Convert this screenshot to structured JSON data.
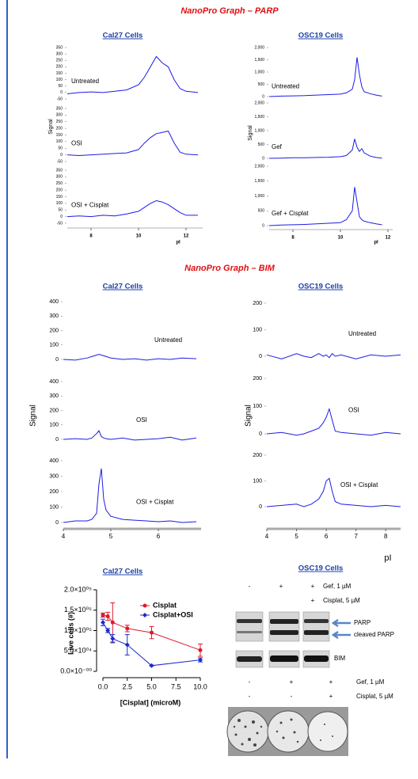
{
  "sections": [
    {
      "title": "NanoPro Graph – PARP"
    },
    {
      "title": "NanoPro Graph – BIM"
    }
  ],
  "chart_data": [
    {
      "type": "traces",
      "title": "Cal27 Cells",
      "y_label": "Signal",
      "x_label": "pI",
      "xlim": [
        7,
        12.7
      ],
      "xticks": [
        8,
        10,
        12
      ],
      "ylim": [
        -50,
        350
      ],
      "yticks": [
        -50,
        0,
        50,
        100,
        150,
        200,
        250,
        300,
        350
      ],
      "x": [
        7,
        7.5,
        8,
        8.5,
        9,
        9.5,
        10,
        10.25,
        10.5,
        10.75,
        11,
        11.25,
        11.5,
        11.75,
        12,
        12.5
      ],
      "series": [
        {
          "name": "Untreated",
          "color": "#1c1ce6",
          "values": [
            -10,
            0,
            5,
            0,
            10,
            20,
            60,
            120,
            200,
            280,
            230,
            200,
            100,
            30,
            10,
            0
          ]
        },
        {
          "name": "OSI",
          "color": "#1c1ce6",
          "values": [
            0,
            -5,
            0,
            5,
            10,
            15,
            40,
            90,
            130,
            160,
            170,
            180,
            90,
            20,
            5,
            0
          ]
        },
        {
          "name": "OSI + Cisplat",
          "color": "#1c1ce6",
          "values": [
            0,
            5,
            0,
            10,
            5,
            20,
            40,
            70,
            100,
            120,
            110,
            90,
            60,
            30,
            10,
            10
          ]
        }
      ]
    },
    {
      "type": "traces",
      "title": "OSC19 Cells",
      "y_label": "Signal",
      "x_label": "pI",
      "xlim": [
        7,
        12.2
      ],
      "xticks": [
        8,
        10,
        12
      ],
      "ylim": [
        0,
        2000
      ],
      "yticks": [
        0,
        500,
        {
          "value": 1000,
          "label": "1,000"
        },
        {
          "value": 1500,
          "label": "1,500"
        },
        {
          "value": 2000,
          "label": "2,000"
        }
      ],
      "x": [
        7,
        7.5,
        8,
        8.5,
        9,
        9.5,
        10,
        10.25,
        10.5,
        10.6,
        10.7,
        10.8,
        10.9,
        11,
        11.25,
        11.5,
        11.75
      ],
      "series": [
        {
          "name": "Untreated",
          "color": "#1c1ce6",
          "values": [
            0,
            20,
            30,
            40,
            60,
            80,
            100,
            150,
            300,
            700,
            1600,
            900,
            400,
            200,
            120,
            60,
            20
          ]
        },
        {
          "name": "Gef",
          "color": "#1c1ce6",
          "values": [
            0,
            10,
            20,
            20,
            30,
            40,
            60,
            100,
            300,
            700,
            400,
            250,
            350,
            200,
            80,
            30,
            10
          ]
        },
        {
          "name": "Gef + Cisplat",
          "color": "#1c1ce6",
          "values": [
            0,
            20,
            30,
            40,
            60,
            80,
            100,
            200,
            500,
            1300,
            800,
            300,
            200,
            150,
            100,
            60,
            30
          ]
        }
      ]
    },
    {
      "type": "traces",
      "title": "Cal27 Cells",
      "y_label": "Signal",
      "xlim": [
        4,
        6.9
      ],
      "xticks": [
        4,
        5,
        6
      ],
      "ylim": [
        0,
        400
      ],
      "yticks": [
        0,
        100,
        200,
        300,
        400
      ],
      "x": [
        4,
        4.25,
        4.5,
        4.6,
        4.7,
        4.75,
        4.8,
        4.85,
        4.9,
        5,
        5.25,
        5.5,
        5.75,
        6,
        6.25,
        6.5,
        6.8
      ],
      "series": [
        {
          "name": "Untreated",
          "color": "#1c1ce6",
          "values": [
            0,
            -5,
            10,
            20,
            30,
            35,
            30,
            25,
            20,
            10,
            0,
            5,
            -5,
            5,
            0,
            10,
            5
          ]
        },
        {
          "name": "OSI",
          "color": "#1c1ce6",
          "values": [
            0,
            5,
            0,
            10,
            40,
            60,
            20,
            10,
            5,
            0,
            10,
            -5,
            0,
            5,
            15,
            -5,
            10
          ]
        },
        {
          "name": "OSI + Cisplat",
          "color": "#1c1ce6",
          "values": [
            0,
            10,
            10,
            20,
            60,
            250,
            350,
            150,
            80,
            40,
            20,
            15,
            10,
            5,
            10,
            0,
            5
          ]
        }
      ]
    },
    {
      "type": "traces",
      "title": "OSC19 Cells",
      "y_label": "Signal",
      "x_label": "pI",
      "xlim": [
        4,
        8.5
      ],
      "xticks": [
        4,
        5,
        6,
        7,
        8
      ],
      "ylim": [
        0,
        200
      ],
      "yticks": [
        0,
        100,
        200
      ],
      "x": [
        4,
        4.5,
        5,
        5.25,
        5.5,
        5.75,
        5.9,
        6,
        6.1,
        6.2,
        6.3,
        6.5,
        7,
        7.5,
        8,
        8.5
      ],
      "series": [
        {
          "name": "Untreated",
          "color": "#1c1ce6",
          "values": [
            5,
            -10,
            10,
            0,
            -5,
            10,
            0,
            5,
            -5,
            10,
            0,
            5,
            -10,
            5,
            0,
            5
          ]
        },
        {
          "name": "OSI",
          "color": "#1c1ce6",
          "values": [
            0,
            5,
            -5,
            0,
            10,
            20,
            40,
            60,
            90,
            50,
            10,
            5,
            0,
            -5,
            5,
            0
          ]
        },
        {
          "name": "OSI + Cisplat",
          "color": "#1c1ce6",
          "values": [
            0,
            5,
            10,
            0,
            10,
            30,
            60,
            100,
            110,
            60,
            20,
            10,
            5,
            0,
            5,
            0
          ]
        }
      ]
    },
    {
      "type": "line",
      "title": "Cal27 Cells",
      "x_label": "[Cisplat] (microM)",
      "y_label": "Live cells (#)",
      "xlim": [
        0,
        10
      ],
      "xticks": [
        {
          "value": 0,
          "label": "0.0"
        },
        2.5,
        {
          "value": 5,
          "label": "5.0"
        },
        7.5,
        {
          "value": 10,
          "label": "10.0"
        }
      ],
      "ylim": [
        0,
        200000
      ],
      "yticks": [
        {
          "value": 0,
          "label": "0.0×10⁻⁰⁰"
        },
        {
          "value": 50000,
          "label": "5.0×10⁰⁴"
        },
        {
          "value": 100000,
          "label": "1.0×10⁰⁵"
        },
        {
          "value": 150000,
          "label": "1.5×10⁰⁵"
        },
        {
          "value": 200000,
          "label": "2.0×10⁰⁵"
        }
      ],
      "legend": "top-right",
      "x": [
        0,
        0.5,
        1,
        2.5,
        5,
        10
      ],
      "series": [
        {
          "name": "Cisplat",
          "color": "#e0192a",
          "values": [
            138000,
            135000,
            120000,
            105000,
            95000,
            52000
          ],
          "errors": [
            5000,
            10000,
            48000,
            8000,
            15000,
            15000
          ]
        },
        {
          "name": "Cisplat+OSI",
          "color": "#1a2ad0",
          "values": [
            120000,
            100000,
            80000,
            65000,
            14000,
            28000
          ],
          "errors": [
            8000,
            5000,
            10000,
            25000,
            1000,
            5000
          ]
        }
      ]
    }
  ],
  "blot": {
    "title": "OSC19 Cells",
    "header_top": [
      {
        "marks": [
          "-",
          "+",
          "+"
        ],
        "label": "Gef, 1 µM"
      },
      {
        "marks": [
          null,
          null,
          "+"
        ],
        "label": "Cisplat, 5 µM"
      }
    ],
    "bands": [
      "PARP",
      "cleaved PARP",
      "BIM"
    ],
    "header_bottom": [
      {
        "marks": [
          "-",
          "+",
          "+"
        ],
        "label": "Gef, 1 µM"
      },
      {
        "marks": [
          "-",
          "-",
          "+"
        ],
        "label": "Cisplat, 5 µM"
      }
    ]
  }
}
